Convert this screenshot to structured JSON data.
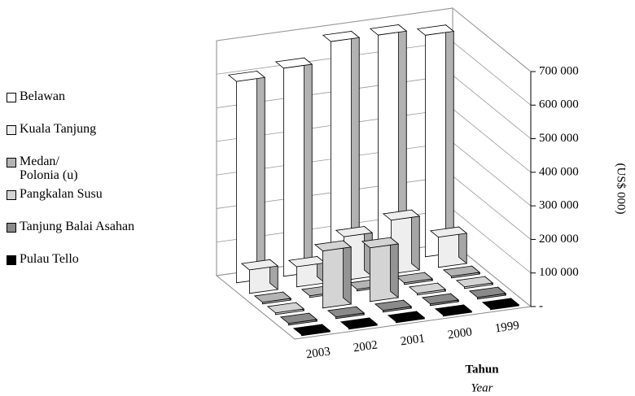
{
  "chart_data": {
    "type": "bar3d",
    "categories": [
      "2003",
      "2002",
      "2001",
      "2000",
      "1999"
    ],
    "series": [
      {
        "name": "Belawan",
        "color": "#ffffff",
        "values": [
          600000,
          620000,
          680000,
          680000,
          660000
        ]
      },
      {
        "name": "Kuala Tanjung",
        "color": "#eeeeee",
        "values": [
          70000,
          60000,
          130000,
          160000,
          90000
        ]
      },
      {
        "name": "Medan/\nPolonia (u)",
        "color": "#b4b4b4",
        "values": [
          5000,
          5000,
          5000,
          5000,
          5000
        ]
      },
      {
        "name": "Pangkalan Susu",
        "color": "#d4d4d4",
        "values": [
          5000,
          170000,
          160000,
          5000,
          5000
        ]
      },
      {
        "name": "Tanjung Balai Asahan",
        "color": "#8a8a8a",
        "values": [
          5000,
          5000,
          5000,
          5000,
          5000
        ]
      },
      {
        "name": "Pulau Tello",
        "color": "#000000",
        "values": [
          3000,
          3000,
          3000,
          3000,
          3000
        ]
      }
    ],
    "ylim": [
      0,
      700000
    ],
    "yticks": [
      {
        "value": 0,
        "label": "-"
      },
      {
        "value": 100000,
        "label": "100 000"
      },
      {
        "value": 200000,
        "label": "200 000"
      },
      {
        "value": 300000,
        "label": "300 000"
      },
      {
        "value": 400000,
        "label": "400 000"
      },
      {
        "value": 500000,
        "label": "500 000"
      },
      {
        "value": 600000,
        "label": "600 000"
      },
      {
        "value": 700000,
        "label": "700 000"
      }
    ],
    "y_label": "(US$ 000)",
    "x_label": "Tahun",
    "x_label_2": "Year",
    "grid": true,
    "legend": "left"
  }
}
